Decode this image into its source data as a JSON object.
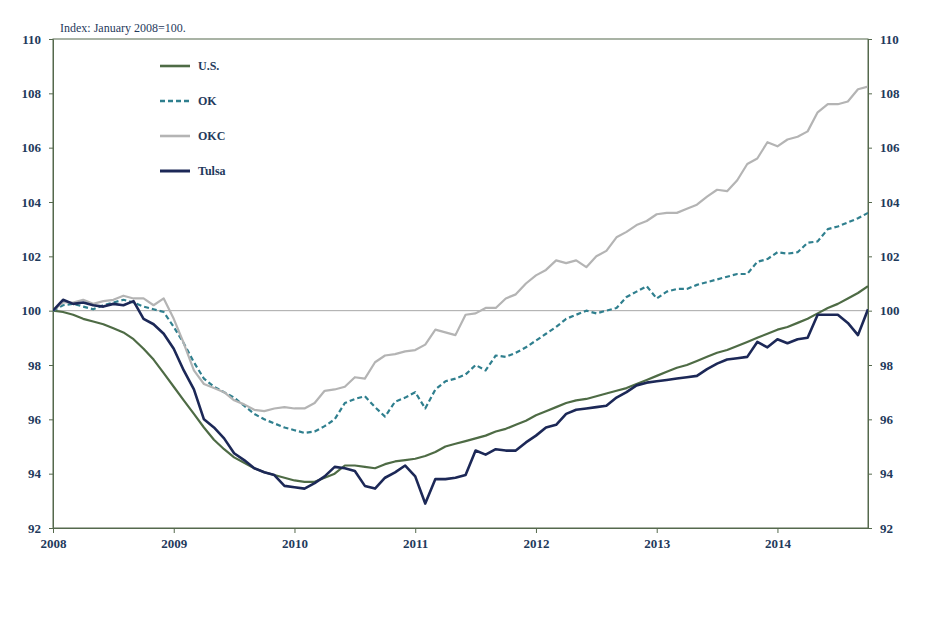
{
  "chart_data": {
    "type": "line",
    "title": "Index: January 2008=100.",
    "x": [
      2008,
      2008.083,
      2008.167,
      2008.25,
      2008.333,
      2008.417,
      2008.5,
      2008.583,
      2008.667,
      2008.75,
      2008.833,
      2008.917,
      2009,
      2009.083,
      2009.167,
      2009.25,
      2009.333,
      2009.417,
      2009.5,
      2009.583,
      2009.667,
      2009.75,
      2009.833,
      2009.917,
      2010,
      2010.083,
      2010.167,
      2010.25,
      2010.333,
      2010.417,
      2010.5,
      2010.583,
      2010.667,
      2010.75,
      2010.833,
      2010.917,
      2011,
      2011.083,
      2011.167,
      2011.25,
      2011.333,
      2011.417,
      2011.5,
      2011.583,
      2011.667,
      2011.75,
      2011.833,
      2011.917,
      2012,
      2012.083,
      2012.167,
      2012.25,
      2012.333,
      2012.417,
      2012.5,
      2012.583,
      2012.667,
      2012.75,
      2012.833,
      2012.917,
      2013,
      2013.083,
      2013.167,
      2013.25,
      2013.333,
      2013.417,
      2013.5,
      2013.583,
      2013.667,
      2013.75,
      2013.833,
      2013.917,
      2014,
      2014.083,
      2014.167,
      2014.25,
      2014.333,
      2014.417,
      2014.5,
      2014.583,
      2014.667,
      2014.75
    ],
    "series": [
      {
        "name": "U.S.",
        "color": "#4e6b45",
        "line_style": "solid",
        "values": [
          100,
          99.95,
          99.85,
          99.7,
          99.6,
          99.5,
          99.35,
          99.2,
          98.95,
          98.6,
          98.2,
          97.7,
          97.2,
          96.7,
          96.2,
          95.7,
          95.25,
          94.9,
          94.6,
          94.4,
          94.2,
          94.05,
          93.95,
          93.85,
          93.75,
          93.7,
          93.7,
          93.85,
          94.0,
          94.3,
          94.3,
          94.25,
          94.2,
          94.35,
          94.45,
          94.5,
          94.55,
          94.65,
          94.8,
          95.0,
          95.1,
          95.2,
          95.3,
          95.4,
          95.55,
          95.65,
          95.8,
          95.95,
          96.15,
          96.3,
          96.45,
          96.6,
          96.7,
          96.75,
          96.85,
          96.95,
          97.05,
          97.15,
          97.3,
          97.45,
          97.6,
          97.75,
          97.9,
          98.0,
          98.15,
          98.3,
          98.45,
          98.55,
          98.7,
          98.85,
          99.0,
          99.15,
          99.3,
          99.4,
          99.55,
          99.7,
          99.9,
          100.1,
          100.25,
          100.45,
          100.65,
          100.9
        ]
      },
      {
        "name": "OK",
        "color": "#2f7f8e",
        "line_style": "dashed",
        "values": [
          100,
          100.2,
          100.25,
          100.15,
          100.05,
          100.2,
          100.3,
          100.4,
          100.3,
          100.15,
          100.05,
          99.95,
          99.4,
          98.8,
          98.1,
          97.5,
          97.2,
          97.0,
          96.8,
          96.5,
          96.2,
          96.0,
          95.85,
          95.7,
          95.6,
          95.5,
          95.55,
          95.75,
          96.0,
          96.6,
          96.75,
          96.85,
          96.45,
          96.1,
          96.65,
          96.8,
          97.0,
          96.4,
          97.1,
          97.4,
          97.5,
          97.65,
          98.0,
          97.8,
          98.35,
          98.3,
          98.45,
          98.65,
          98.9,
          99.15,
          99.4,
          99.7,
          99.85,
          100.0,
          99.9,
          100.0,
          100.1,
          100.5,
          100.7,
          100.9,
          100.45,
          100.7,
          100.8,
          100.8,
          100.95,
          101.05,
          101.15,
          101.25,
          101.35,
          101.35,
          101.8,
          101.9,
          102.15,
          102.1,
          102.15,
          102.5,
          102.55,
          103.0,
          103.1,
          103.25,
          103.4,
          103.6
        ]
      },
      {
        "name": "OKC",
        "color": "#b4b4b4",
        "line_style": "solid",
        "values": [
          100,
          100.3,
          100.3,
          100.4,
          100.25,
          100.35,
          100.4,
          100.55,
          100.45,
          100.45,
          100.2,
          100.45,
          99.7,
          98.8,
          97.8,
          97.3,
          97.15,
          97.0,
          96.7,
          96.55,
          96.35,
          96.3,
          96.4,
          96.45,
          96.4,
          96.4,
          96.6,
          97.05,
          97.1,
          97.2,
          97.55,
          97.5,
          98.1,
          98.35,
          98.4,
          98.5,
          98.55,
          98.75,
          99.3,
          99.2,
          99.1,
          99.85,
          99.9,
          100.1,
          100.1,
          100.45,
          100.6,
          101.0,
          101.3,
          101.5,
          101.85,
          101.75,
          101.85,
          101.6,
          102.0,
          102.2,
          102.7,
          102.9,
          103.15,
          103.3,
          103.55,
          103.6,
          103.6,
          103.75,
          103.9,
          104.2,
          104.45,
          104.4,
          104.8,
          105.4,
          105.6,
          106.2,
          106.05,
          106.3,
          106.4,
          106.6,
          107.3,
          107.6,
          107.6,
          107.7,
          108.15,
          108.25
        ]
      },
      {
        "name": "Tulsa",
        "color": "#1c2857",
        "line_style": "solid",
        "values": [
          100,
          100.4,
          100.25,
          100.3,
          100.2,
          100.15,
          100.25,
          100.2,
          100.35,
          99.7,
          99.5,
          99.15,
          98.6,
          97.8,
          97.1,
          96.0,
          95.7,
          95.3,
          94.75,
          94.5,
          94.2,
          94.05,
          93.95,
          93.55,
          93.5,
          93.45,
          93.65,
          93.9,
          94.25,
          94.2,
          94.1,
          93.55,
          93.45,
          93.85,
          94.05,
          94.3,
          93.9,
          92.9,
          93.8,
          93.8,
          93.85,
          93.95,
          94.85,
          94.7,
          94.9,
          94.85,
          94.85,
          95.15,
          95.4,
          95.7,
          95.8,
          96.2,
          96.35,
          96.4,
          96.45,
          96.5,
          96.8,
          97.0,
          97.25,
          97.35,
          97.4,
          97.45,
          97.5,
          97.55,
          97.6,
          97.85,
          98.05,
          98.2,
          98.25,
          98.3,
          98.85,
          98.65,
          98.95,
          98.8,
          98.95,
          99.0,
          99.85,
          99.85,
          99.85,
          99.55,
          99.1,
          100.05
        ]
      }
    ],
    "xlim": [
      2008,
      2014.75
    ],
    "xticks": [
      2008,
      2009,
      2010,
      2011,
      2012,
      2013,
      2014
    ],
    "ylim": [
      92,
      110
    ],
    "yticks": [
      92,
      94,
      96,
      98,
      100,
      102,
      104,
      106,
      108,
      110
    ],
    "reference_line": 100,
    "grid": false,
    "legend": "top-left"
  }
}
